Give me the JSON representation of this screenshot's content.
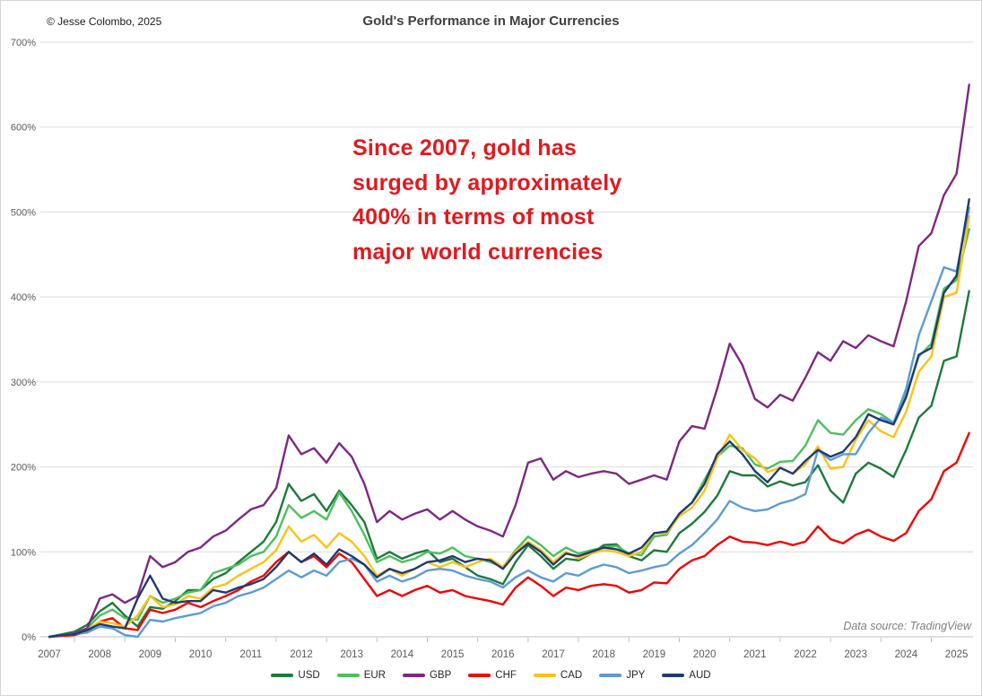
{
  "header": {
    "copyright": "© Jesse Colombo, 2025",
    "title": "Gold's Performance in Major Currencies"
  },
  "annotation": {
    "lines": [
      "Since 2007, gold has",
      "surged by approximately",
      "400% in terms of most",
      "major world currencies"
    ],
    "color": "#e01a1f"
  },
  "footer": {
    "source": "Data source: TradingView"
  },
  "colors": {
    "grid": "#dcdcdc",
    "axis": "#bfbfbf",
    "axis_text": "#595959",
    "title_text": "#404040",
    "background": "#ffffff"
  },
  "chart_data": {
    "type": "line",
    "title": "Gold's Performance in Major Currencies",
    "xlabel": "",
    "ylabel": "",
    "ylim": [
      0,
      700
    ],
    "y_ticks": [
      0,
      100,
      200,
      300,
      400,
      500,
      600,
      700
    ],
    "y_tick_suffix": "%",
    "x_tick_labels": [
      "2007",
      "2008",
      "2009",
      "2010",
      "2011",
      "2012",
      "2013",
      "2014",
      "2015",
      "2016",
      "2017",
      "2018",
      "2019",
      "2020",
      "2021",
      "2022",
      "2023",
      "2024",
      "2025"
    ],
    "x_start": 2007.0,
    "x_step": 0.25,
    "grid": "horizontal",
    "legend_position": "bottom",
    "series": [
      {
        "name": "USD",
        "color": "#1d7a3c",
        "values": [
          0,
          3,
          6,
          14,
          30,
          40,
          25,
          12,
          35,
          33,
          42,
          55,
          55,
          68,
          75,
          88,
          100,
          112,
          135,
          180,
          160,
          168,
          148,
          172,
          155,
          135,
          92,
          100,
          92,
          98,
          102,
          88,
          92,
          82,
          72,
          68,
          62,
          88,
          108,
          95,
          80,
          92,
          90,
          98,
          108,
          109,
          95,
          90,
          102,
          100,
          122,
          133,
          147,
          166,
          195,
          190,
          190,
          177,
          183,
          178,
          182,
          202,
          172,
          158,
          192,
          205,
          198,
          188,
          220,
          258,
          272,
          325,
          330,
          407
        ]
      },
      {
        "name": "EUR",
        "color": "#4cc05c",
        "values": [
          0,
          2,
          4,
          10,
          25,
          32,
          22,
          20,
          48,
          40,
          45,
          52,
          55,
          75,
          80,
          85,
          95,
          100,
          118,
          155,
          140,
          148,
          138,
          170,
          148,
          120,
          88,
          95,
          88,
          92,
          100,
          98,
          105,
          95,
          92,
          88,
          82,
          102,
          118,
          108,
          95,
          105,
          98,
          102,
          105,
          107,
          98,
          96,
          118,
          120,
          145,
          158,
          185,
          212,
          225,
          222,
          203,
          198,
          206,
          207,
          225,
          255,
          240,
          238,
          255,
          268,
          262,
          252,
          285,
          330,
          345,
          410,
          420,
          480
        ]
      },
      {
        "name": "GBP",
        "color": "#7d2882",
        "values": [
          0,
          2,
          4,
          10,
          45,
          50,
          40,
          48,
          95,
          82,
          88,
          100,
          105,
          118,
          125,
          138,
          150,
          155,
          175,
          237,
          215,
          222,
          205,
          228,
          212,
          180,
          135,
          148,
          138,
          145,
          150,
          138,
          148,
          138,
          130,
          125,
          118,
          155,
          205,
          210,
          185,
          195,
          188,
          192,
          195,
          192,
          180,
          185,
          190,
          185,
          230,
          248,
          245,
          292,
          345,
          320,
          280,
          270,
          285,
          278,
          305,
          335,
          325,
          348,
          340,
          355,
          348,
          342,
          395,
          460,
          475,
          520,
          545,
          650
        ]
      },
      {
        "name": "CHF",
        "color": "#f40000",
        "values": [
          0,
          1,
          2,
          6,
          18,
          22,
          10,
          8,
          32,
          28,
          32,
          40,
          35,
          42,
          48,
          55,
          65,
          72,
          88,
          100,
          88,
          95,
          82,
          98,
          88,
          68,
          48,
          55,
          48,
          55,
          60,
          52,
          55,
          48,
          45,
          42,
          38,
          58,
          70,
          60,
          48,
          58,
          55,
          60,
          62,
          60,
          52,
          55,
          64,
          63,
          80,
          90,
          95,
          108,
          118,
          112,
          111,
          108,
          112,
          108,
          112,
          130,
          115,
          110,
          120,
          126,
          118,
          113,
          122,
          148,
          162,
          195,
          205,
          240
        ]
      },
      {
        "name": "CAD",
        "color": "#fdc116",
        "values": [
          0,
          2,
          3,
          8,
          18,
          16,
          12,
          25,
          48,
          35,
          38,
          48,
          45,
          58,
          62,
          72,
          80,
          88,
          102,
          130,
          112,
          120,
          105,
          122,
          112,
          95,
          72,
          80,
          72,
          80,
          88,
          82,
          88,
          82,
          88,
          92,
          82,
          100,
          112,
          102,
          88,
          100,
          92,
          98,
          102,
          100,
          95,
          100,
          122,
          122,
          142,
          152,
          172,
          210,
          238,
          220,
          210,
          194,
          199,
          192,
          203,
          224,
          198,
          200,
          232,
          255,
          242,
          235,
          265,
          312,
          330,
          400,
          405,
          495
        ]
      },
      {
        "name": "JPY",
        "color": "#5b9bd5",
        "values": [
          0,
          2,
          3,
          5,
          12,
          10,
          2,
          0,
          20,
          18,
          22,
          25,
          28,
          36,
          40,
          48,
          52,
          58,
          68,
          78,
          70,
          78,
          72,
          88,
          92,
          85,
          65,
          72,
          65,
          70,
          78,
          80,
          78,
          72,
          68,
          65,
          58,
          70,
          78,
          70,
          65,
          75,
          72,
          80,
          85,
          82,
          75,
          78,
          82,
          85,
          98,
          108,
          122,
          138,
          160,
          152,
          148,
          150,
          157,
          161,
          168,
          220,
          208,
          215,
          215,
          240,
          258,
          252,
          292,
          355,
          395,
          435,
          430,
          505
        ]
      },
      {
        "name": "AUD",
        "color": "#1f3b70",
        "values": [
          0,
          2,
          3,
          8,
          15,
          12,
          10,
          45,
          72,
          45,
          40,
          42,
          42,
          55,
          52,
          58,
          62,
          68,
          82,
          100,
          88,
          98,
          85,
          103,
          95,
          85,
          70,
          80,
          75,
          80,
          88,
          90,
          95,
          88,
          92,
          90,
          80,
          98,
          110,
          100,
          85,
          98,
          95,
          100,
          105,
          103,
          98,
          105,
          122,
          124,
          145,
          158,
          180,
          215,
          230,
          215,
          195,
          182,
          199,
          192,
          207,
          220,
          212,
          218,
          235,
          262,
          255,
          250,
          282,
          332,
          340,
          405,
          425,
          515
        ]
      }
    ]
  }
}
